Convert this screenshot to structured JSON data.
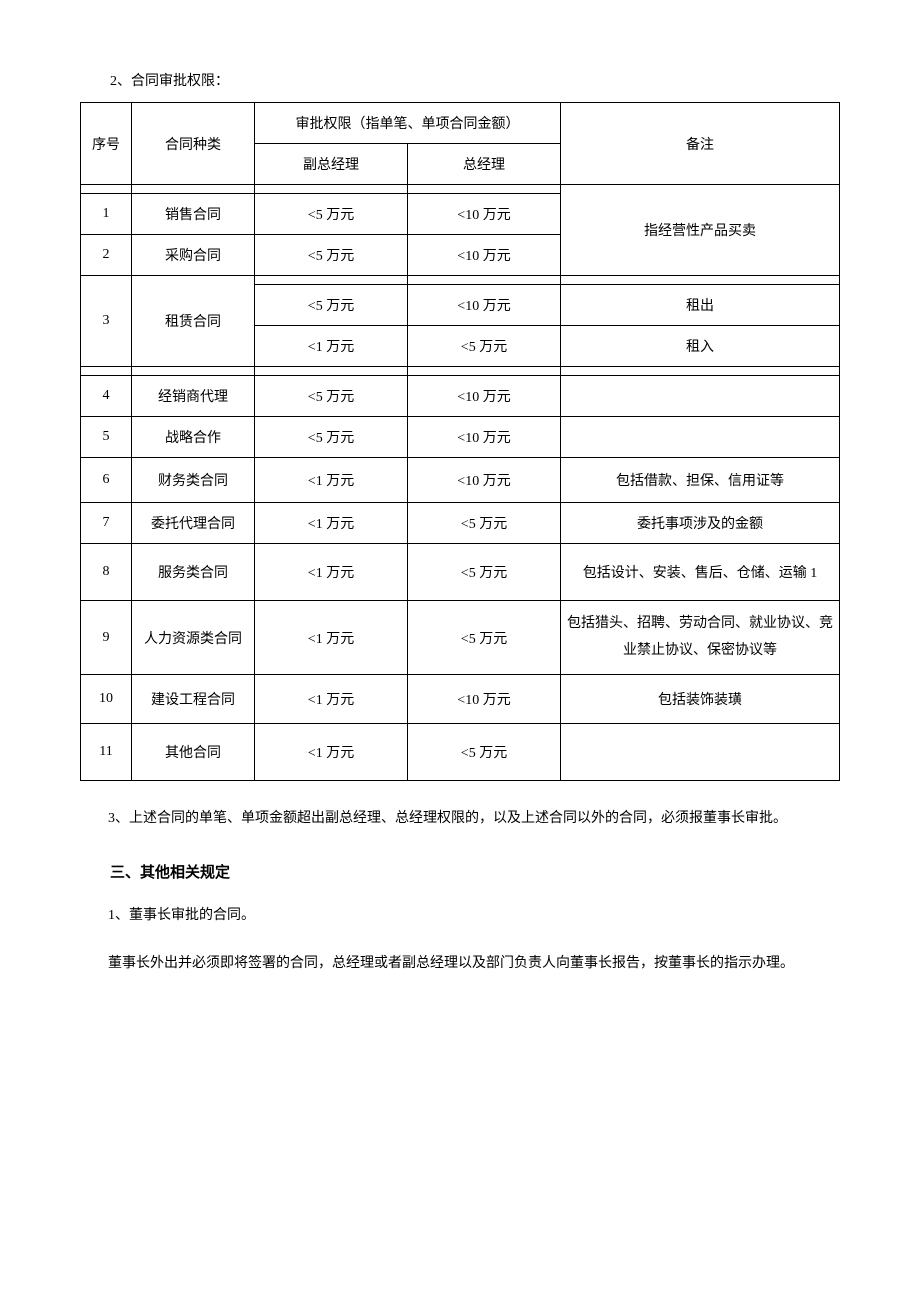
{
  "intro": "2、合同审批权限：",
  "table": {
    "header": {
      "seq": "序号",
      "type": "合同种类",
      "authority": "审批权限（指单笔、单项合同金额）",
      "deputy": "副总经理",
      "gm": "总经理",
      "remark": "备注"
    },
    "group1_remark": "指经营性产品买卖",
    "rows": {
      "r1": {
        "seq": "1",
        "type": "销售合同",
        "deputy": "<5 万元",
        "gm": "<10 万元"
      },
      "r2": {
        "seq": "2",
        "type": "采购合同",
        "deputy": "<5 万元",
        "gm": "<10 万元"
      },
      "r3": {
        "seq": "3",
        "type": "租赁合同",
        "sub1": {
          "deputy": "<5 万元",
          "gm": "<10 万元",
          "remark": "租出"
        },
        "sub2": {
          "deputy": "<1 万元",
          "gm": "<5 万元",
          "remark": "租入"
        }
      },
      "r4": {
        "seq": "4",
        "type": "经销商代理",
        "deputy": "<5 万元",
        "gm": "<10 万元",
        "remark": ""
      },
      "r5": {
        "seq": "5",
        "type": "战略合作",
        "deputy": "<5 万元",
        "gm": "<10 万元",
        "remark": ""
      },
      "r6": {
        "seq": "6",
        "type": "财务类合同",
        "deputy": "<1 万元",
        "gm": "<10 万元",
        "remark": "包括借款、担保、信用证等"
      },
      "r7": {
        "seq": "7",
        "type": "委托代理合同",
        "deputy": "<1 万元",
        "gm": "<5 万元",
        "remark": "委托事项涉及的金额"
      },
      "r8": {
        "seq": "8",
        "type": "服务类合同",
        "deputy": "<1 万元",
        "gm": "<5 万元",
        "remark": "包括设计、安装、售后、仓储、运输 1"
      },
      "r9": {
        "seq": "9",
        "type": "人力资源类合同",
        "deputy": "<1 万元",
        "gm": "<5 万元",
        "remark": "包括猎头、招聘、劳动合同、就业协议、竞业禁止协议、保密协议等"
      },
      "r10": {
        "seq": "10",
        "type": "建设工程合同",
        "deputy": "<1 万元",
        "gm": "<10 万元",
        "remark": "包括装饰装璜"
      },
      "r11": {
        "seq": "11",
        "type": "其他合同",
        "deputy": "<1 万元",
        "gm": "<5 万元",
        "remark": ""
      }
    }
  },
  "para3": "3、上述合同的单笔、单项金额超出副总经理、总经理权限的，以及上述合同以外的合同，必须报董事长审批。",
  "heading3": "三、其他相关规定",
  "para_h3_1": "1、董事长审批的合同。",
  "para_h3_2": "董事长外出并必须即将签署的合同，总经理或者副总经理以及部门负责人向董事长报告，按董事长的指示办理。"
}
